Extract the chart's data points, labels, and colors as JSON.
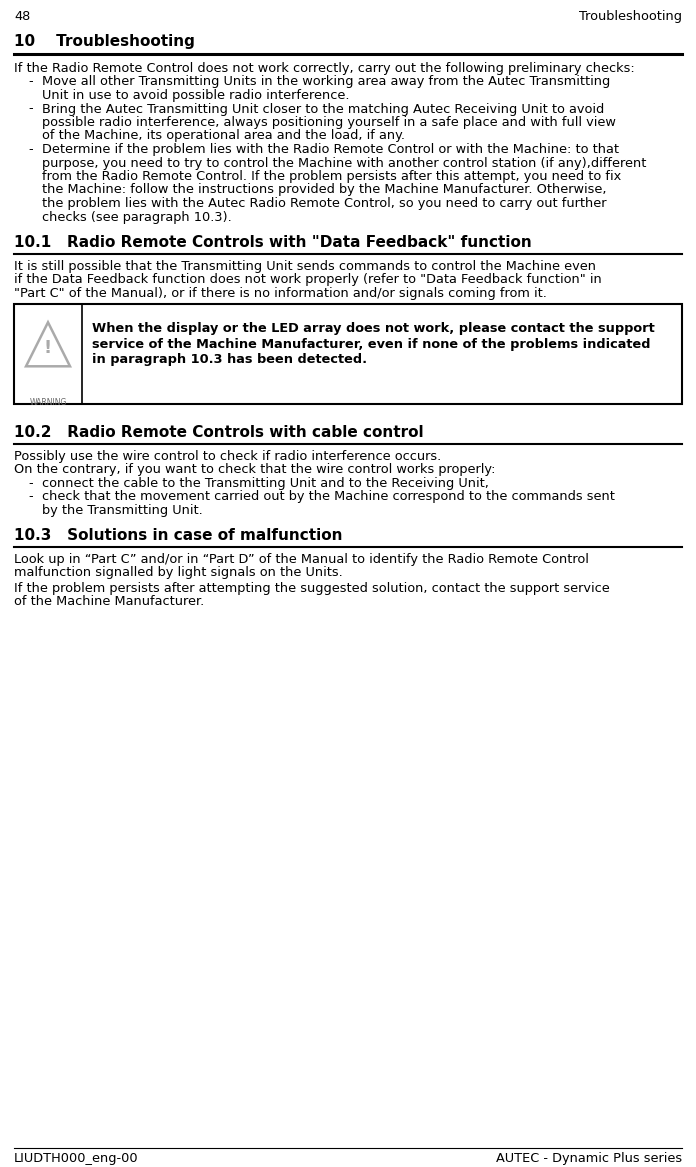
{
  "page_number": "48",
  "page_header_right": "Troubleshooting",
  "footer_left": "LIUDTH000_eng-00",
  "footer_right": "AUTEC - Dynamic Plus series",
  "section_10_intro": "If the Radio Remote Control does not work correctly, carry out the following preliminary checks:",
  "bullet_1_line1": "Move all other Transmitting Units in the working area away from the Autec Transmitting",
  "bullet_1_line2": "Unit in use to avoid possible radio interference.",
  "bullet_2_line1": "Bring the Autec Transmitting Unit closer to the matching Autec Receiving Unit to avoid",
  "bullet_2_line2": "possible radio interference, always positioning yourself in a safe place and with full view",
  "bullet_2_line3": "of the Machine, its operational area and the load, if any.",
  "bullet_3_line1": "Determine if the problem lies with the Radio Remote Control or with the Machine: to that",
  "bullet_3_line2": "purpose, you need to try to control the Machine with another control station (if any),different",
  "bullet_3_line3": "from the Radio Remote Control. If the problem persists after this attempt, you need to fix",
  "bullet_3_line4": "the Machine: follow the instructions provided by the Machine Manufacturer. Otherwise,",
  "bullet_3_line5": "the problem lies with the Autec Radio Remote Control, so you need to carry out further",
  "bullet_3_line6": "checks (see paragraph 10.3).",
  "section_10_1_title": "10.1   Radio Remote Controls with \"Data Feedback\" function",
  "p101_line1": "It is still possible that the Transmitting Unit sends commands to control the Machine even",
  "p101_line2": "if the Data Feedback function does not work properly (refer to \"Data Feedback function\" in",
  "p101_line3": "\"Part C\" of the Manual), or if there is no information and/or signals coming from it.",
  "warn_line1": "When the display or the LED array does not work, please contact the support",
  "warn_line2": "service of the Machine Manufacturer, even if none of the problems indicated",
  "warn_line3": "in paragraph 10.3 has been detected.",
  "section_10_2_title": "10.2   Radio Remote Controls with cable control",
  "p102_line1": "Possibly use the wire control to check if radio interference occurs.",
  "p102_line2": "On the contrary, if you want to check that the wire control works properly:",
  "cb1": "connect the cable to the Transmitting Unit and to the Receiving Unit,",
  "cb2_line1": "check that the movement carried out by the Machine correspond to the commands sent",
  "cb2_line2": "by the Transmitting Unit.",
  "section_10_3_title": "10.3   Solutions in case of malfunction",
  "p103_line1": "Look up in “Part C” and/or in “Part D” of the Manual to identify the Radio Remote Control",
  "p103_line2": "malfunction signalled by light signals on the Units.",
  "p103b_line1": "If the problem persists after attempting the suggested solution, contact the support service",
  "p103b_line2": "of the Machine Manufacturer.",
  "bg_color": "#ffffff",
  "text_color": "#000000",
  "body_font_size": 9.3,
  "section_font_size": 11.0,
  "header_font_size": 9.3
}
